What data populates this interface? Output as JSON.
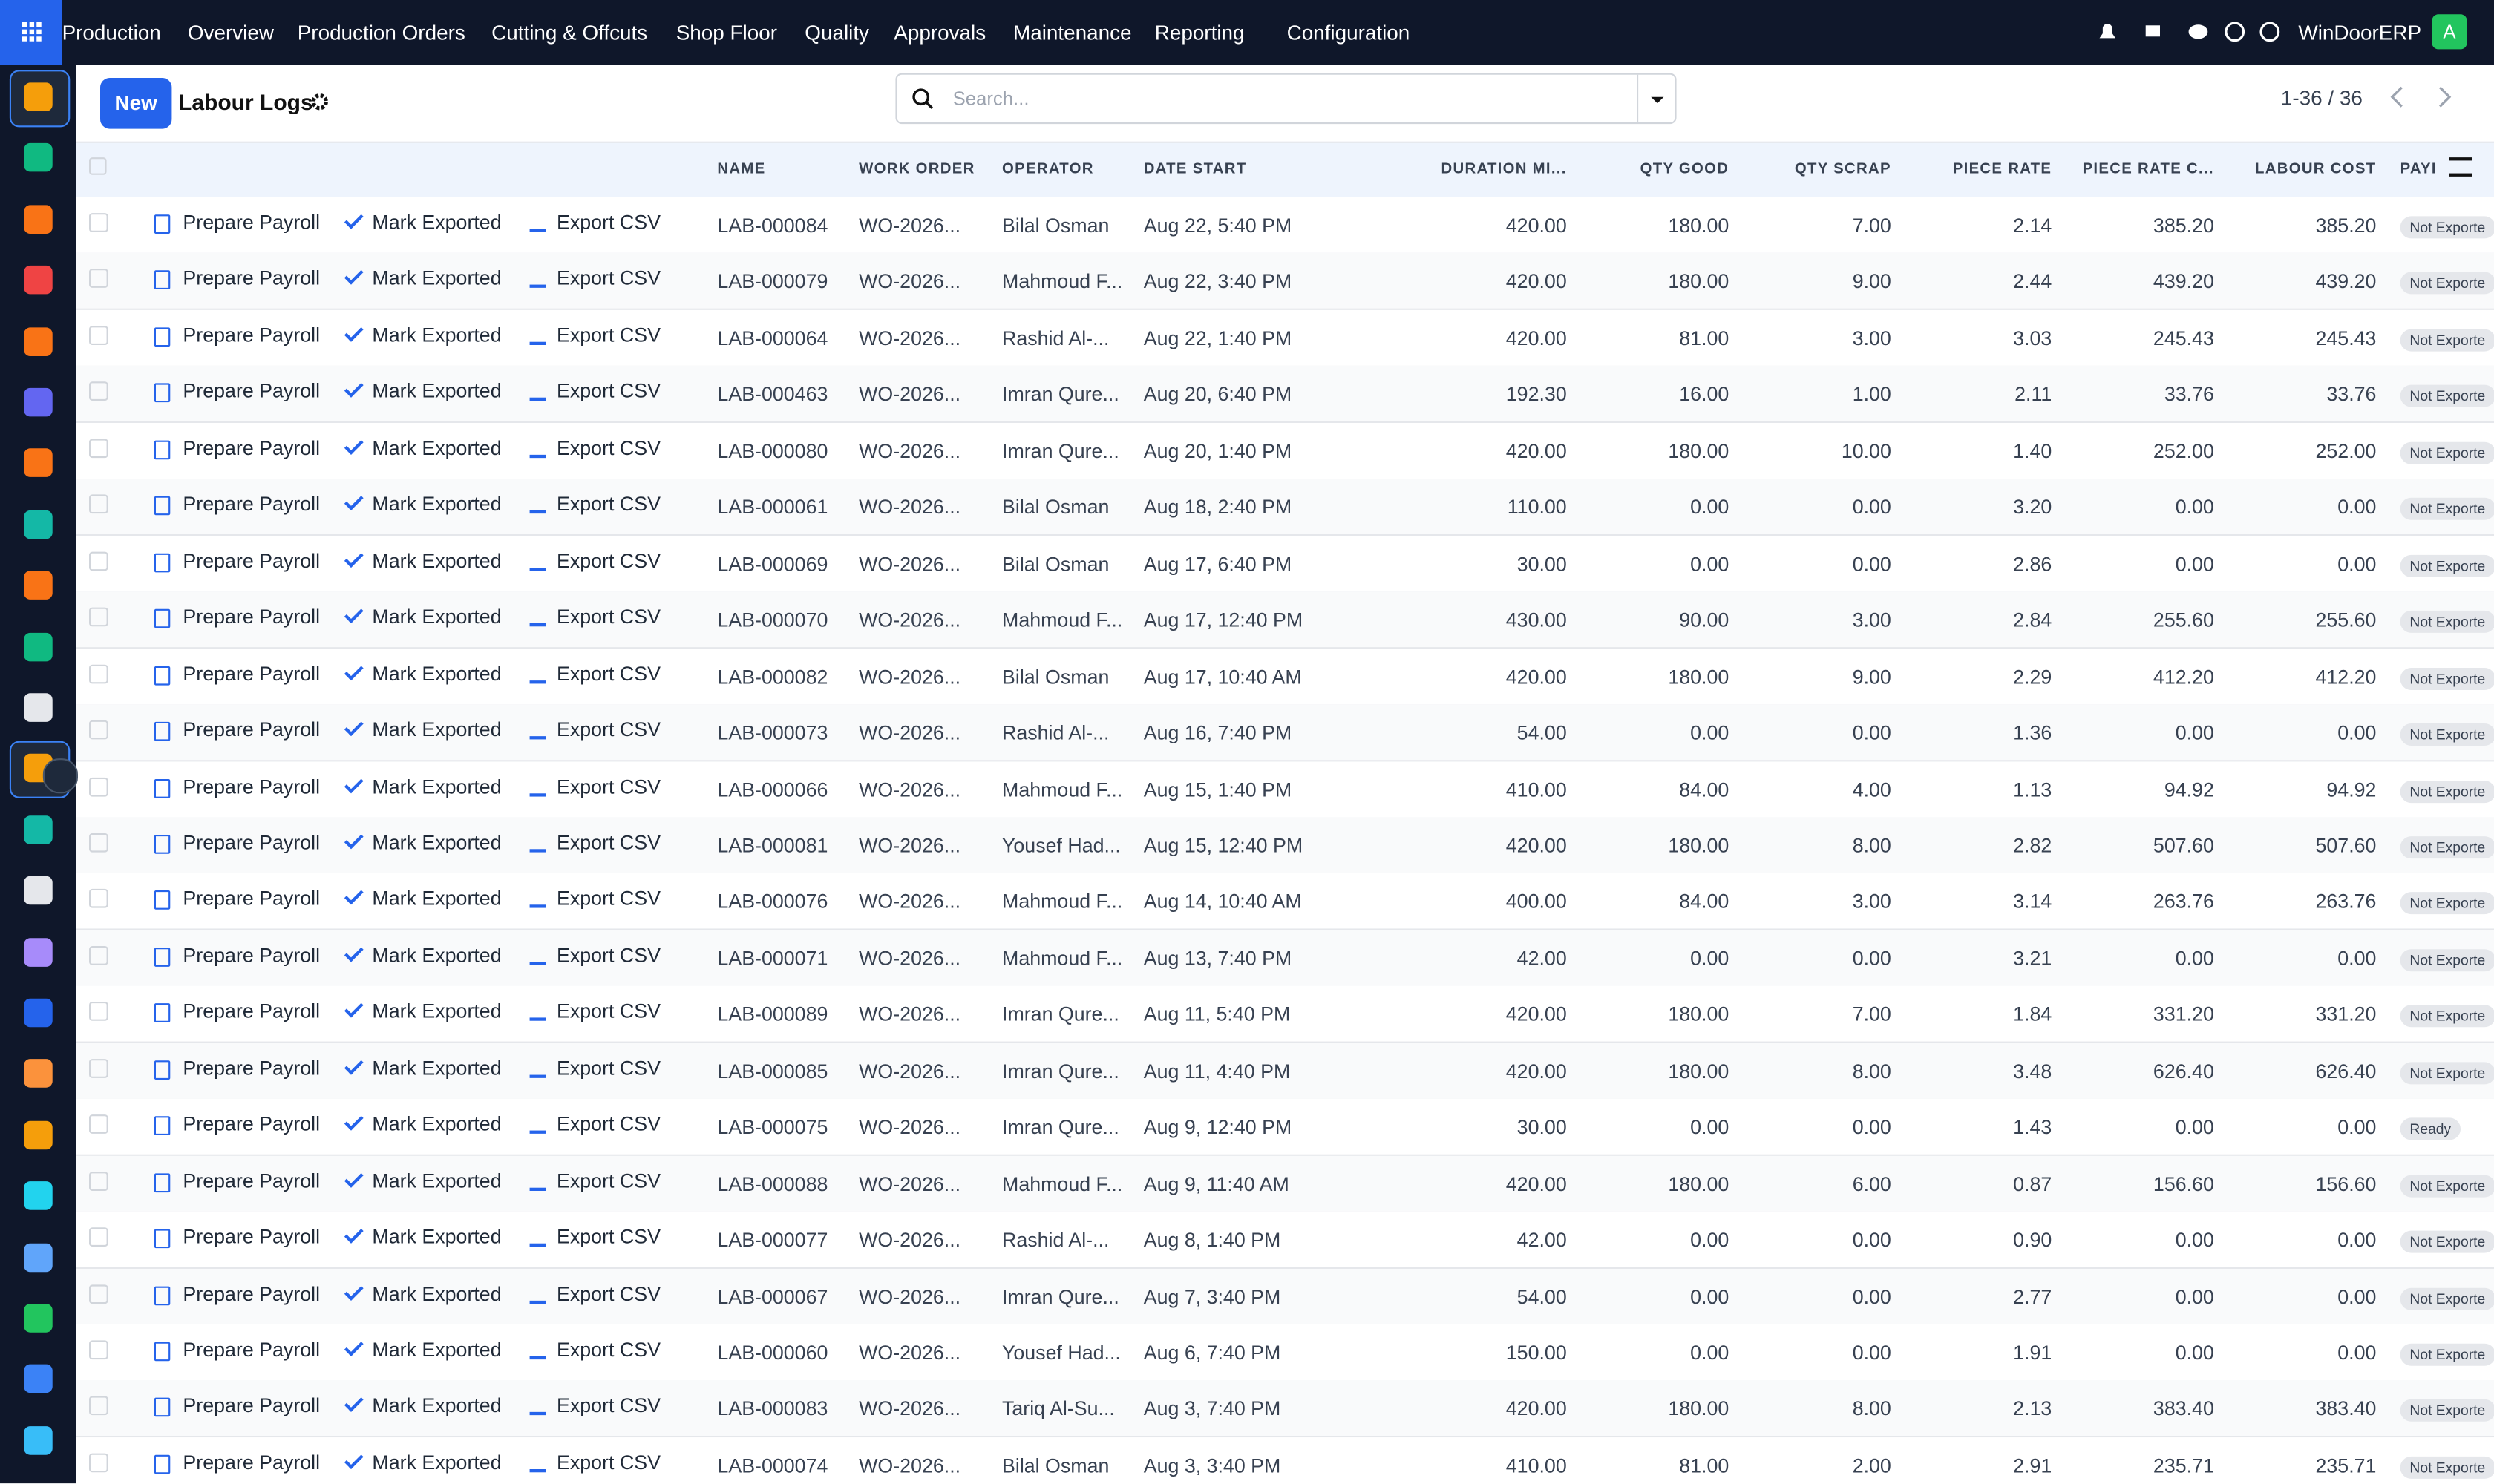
{
  "nav": {
    "app": "Production",
    "items": [
      "Overview",
      "Production Orders",
      "Cutting & Offcuts",
      "Shop Floor",
      "Quality",
      "Approvals",
      "Maintenance",
      "Reporting",
      "Configuration"
    ],
    "brand": "WinDoorERP",
    "avatar": "A"
  },
  "toolbar": {
    "new_button": "New",
    "title": "Labour Logs",
    "search_placeholder": "Search...",
    "pager": "1-36 / 36"
  },
  "table": {
    "headers": [
      "NAME",
      "WORK ORDER",
      "OPERATOR",
      "DATE START",
      "DURATION MI...",
      "QTY GOOD",
      "QTY SCRAP",
      "PIECE RATE",
      "PIECE RATE C...",
      "LABOUR COST",
      "PAYI"
    ],
    "row_actions": [
      "Prepare Payroll",
      "Mark Exported",
      "Export CSV"
    ],
    "rows": [
      [
        "LAB-000084",
        "WO-2026...",
        "Bilal Osman",
        "Aug 22, 5:40 PM",
        "420.00",
        "180.00",
        "7.00",
        "2.14",
        "385.20",
        "385.20",
        "Not Exporte"
      ],
      [
        "LAB-000079",
        "WO-2026...",
        "Mahmoud F...",
        "Aug 22, 3:40 PM",
        "420.00",
        "180.00",
        "9.00",
        "2.44",
        "439.20",
        "439.20",
        "Not Exporte"
      ],
      [
        "LAB-000064",
        "WO-2026...",
        "Rashid Al-...",
        "Aug 22, 1:40 PM",
        "420.00",
        "81.00",
        "3.00",
        "3.03",
        "245.43",
        "245.43",
        "Not Exporte"
      ],
      [
        "LAB-000463",
        "WO-2026...",
        "Imran Qure...",
        "Aug 20, 6:40 PM",
        "192.30",
        "16.00",
        "1.00",
        "2.11",
        "33.76",
        "33.76",
        "Not Exporte"
      ],
      [
        "LAB-000080",
        "WO-2026...",
        "Imran Qure...",
        "Aug 20, 1:40 PM",
        "420.00",
        "180.00",
        "10.00",
        "1.40",
        "252.00",
        "252.00",
        "Not Exporte"
      ],
      [
        "LAB-000061",
        "WO-2026...",
        "Bilal Osman",
        "Aug 18, 2:40 PM",
        "110.00",
        "0.00",
        "0.00",
        "3.20",
        "0.00",
        "0.00",
        "Not Exporte"
      ],
      [
        "LAB-000069",
        "WO-2026...",
        "Bilal Osman",
        "Aug 17, 6:40 PM",
        "30.00",
        "0.00",
        "0.00",
        "2.86",
        "0.00",
        "0.00",
        "Not Exporte"
      ],
      [
        "LAB-000070",
        "WO-2026...",
        "Mahmoud F...",
        "Aug 17, 12:40 PM",
        "430.00",
        "90.00",
        "3.00",
        "2.84",
        "255.60",
        "255.60",
        "Not Exporte"
      ],
      [
        "LAB-000082",
        "WO-2026...",
        "Bilal Osman",
        "Aug 17, 10:40 AM",
        "420.00",
        "180.00",
        "9.00",
        "2.29",
        "412.20",
        "412.20",
        "Not Exporte"
      ],
      [
        "LAB-000073",
        "WO-2026...",
        "Rashid Al-...",
        "Aug 16, 7:40 PM",
        "54.00",
        "0.00",
        "0.00",
        "1.36",
        "0.00",
        "0.00",
        "Not Exporte"
      ],
      [
        "LAB-000066",
        "WO-2026...",
        "Mahmoud F...",
        "Aug 15, 1:40 PM",
        "410.00",
        "84.00",
        "4.00",
        "1.13",
        "94.92",
        "94.92",
        "Not Exporte"
      ],
      [
        "LAB-000081",
        "WO-2026...",
        "Yousef Had...",
        "Aug 15, 12:40 PM",
        "420.00",
        "180.00",
        "8.00",
        "2.82",
        "507.60",
        "507.60",
        "Not Exporte"
      ],
      [
        "LAB-000076",
        "WO-2026...",
        "Mahmoud F...",
        "Aug 14, 10:40 AM",
        "400.00",
        "84.00",
        "3.00",
        "3.14",
        "263.76",
        "263.76",
        "Not Exporte"
      ],
      [
        "LAB-000071",
        "WO-2026...",
        "Mahmoud F...",
        "Aug 13, 7:40 PM",
        "42.00",
        "0.00",
        "0.00",
        "3.21",
        "0.00",
        "0.00",
        "Not Exporte"
      ],
      [
        "LAB-000089",
        "WO-2026...",
        "Imran Qure...",
        "Aug 11, 5:40 PM",
        "420.00",
        "180.00",
        "7.00",
        "1.84",
        "331.20",
        "331.20",
        "Not Exporte"
      ],
      [
        "LAB-000085",
        "WO-2026...",
        "Imran Qure...",
        "Aug 11, 4:40 PM",
        "420.00",
        "180.00",
        "8.00",
        "3.48",
        "626.40",
        "626.40",
        "Not Exporte"
      ],
      [
        "LAB-000075",
        "WO-2026...",
        "Imran Qure...",
        "Aug 9, 12:40 PM",
        "30.00",
        "0.00",
        "0.00",
        "1.43",
        "0.00",
        "0.00",
        "Ready"
      ],
      [
        "LAB-000088",
        "WO-2026...",
        "Mahmoud F...",
        "Aug 9, 11:40 AM",
        "420.00",
        "180.00",
        "6.00",
        "0.87",
        "156.60",
        "156.60",
        "Not Exporte"
      ],
      [
        "LAB-000077",
        "WO-2026...",
        "Rashid Al-...",
        "Aug 8, 1:40 PM",
        "42.00",
        "0.00",
        "0.00",
        "0.90",
        "0.00",
        "0.00",
        "Not Exporte"
      ],
      [
        "LAB-000067",
        "WO-2026...",
        "Imran Qure...",
        "Aug 7, 3:40 PM",
        "54.00",
        "0.00",
        "0.00",
        "2.77",
        "0.00",
        "0.00",
        "Not Exporte"
      ],
      [
        "LAB-000060",
        "WO-2026...",
        "Yousef Had...",
        "Aug 6, 7:40 PM",
        "150.00",
        "0.00",
        "0.00",
        "1.91",
        "0.00",
        "0.00",
        "Not Exporte"
      ],
      [
        "LAB-000083",
        "WO-2026...",
        "Tariq Al-Su...",
        "Aug 3, 7:40 PM",
        "420.00",
        "180.00",
        "8.00",
        "2.13",
        "383.40",
        "383.40",
        "Not Exporte"
      ],
      [
        "LAB-000074",
        "WO-2026...",
        "Bilal Osman",
        "Aug 3, 3:40 PM",
        "410.00",
        "81.00",
        "2.00",
        "2.91",
        "235.71",
        "235.71",
        "Not Exporte"
      ]
    ]
  }
}
